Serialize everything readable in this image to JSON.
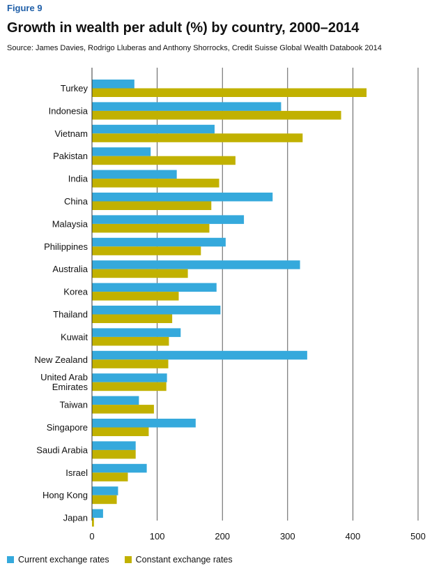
{
  "figure": {
    "label": "Figure 9",
    "title": "Growth in wealth per adult (%) by country, 2000–2014",
    "source": "Source: James Davies, Rodrigo Lluberas and Anthony Shorrocks, Credit Suisse Global Wealth Databook 2014"
  },
  "colors": {
    "current": "#35a9dc",
    "constant": "#c1b100"
  },
  "chart_data": {
    "type": "bar",
    "orientation": "horizontal",
    "title": "Growth in wealth per adult (%) by country, 2000–2014",
    "xlabel": "",
    "ylabel": "",
    "xlim": [
      0,
      500
    ],
    "xticks": [
      0,
      100,
      200,
      300,
      400,
      500
    ],
    "grid": "vertical",
    "legend_position": "bottom-left",
    "categories": [
      [
        "Turkey"
      ],
      [
        "Indonesia"
      ],
      [
        "Vietnam"
      ],
      [
        "Pakistan"
      ],
      [
        "India"
      ],
      [
        "China"
      ],
      [
        "Malaysia"
      ],
      [
        "Philippines"
      ],
      [
        "Australia"
      ],
      [
        "Korea"
      ],
      [
        "Thailand"
      ],
      [
        "Kuwait"
      ],
      [
        "New Zealand"
      ],
      [
        "United Arab",
        "Emirates"
      ],
      [
        "Taiwan"
      ],
      [
        "Singapore"
      ],
      [
        "Saudi Arabia"
      ],
      [
        "Israel"
      ],
      [
        "Hong Kong"
      ],
      [
        "Japan"
      ]
    ],
    "series": [
      {
        "name": "Current exchange rates",
        "key": "current",
        "values": [
          65,
          290,
          188,
          90,
          130,
          277,
          233,
          205,
          319,
          191,
          197,
          136,
          330,
          115,
          72,
          159,
          67,
          84,
          40,
          17
        ]
      },
      {
        "name": "Constant exchange rates",
        "key": "constant",
        "values": [
          421,
          382,
          323,
          220,
          195,
          183,
          180,
          167,
          147,
          133,
          123,
          118,
          117,
          114,
          95,
          87,
          67,
          55,
          38,
          3
        ]
      }
    ]
  }
}
